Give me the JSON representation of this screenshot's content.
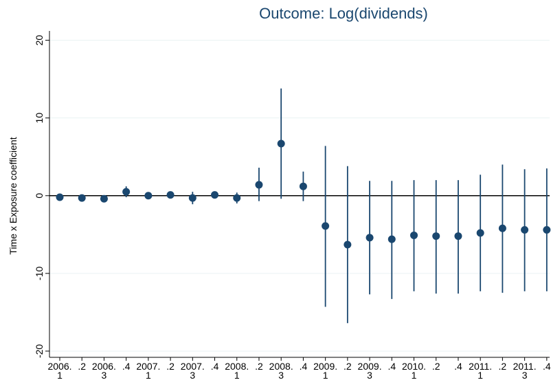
{
  "chart_data": {
    "type": "coefplot",
    "title": "Outcome: Log(dividends)",
    "y_label": "Time x Exposure coefficient",
    "categories": [
      [
        "2006.",
        "1"
      ],
      [
        ".2"
      ],
      [
        "2006.",
        "3"
      ],
      [
        ".4"
      ],
      [
        "2007.",
        "1"
      ],
      [
        ".2"
      ],
      [
        "2007.",
        "3"
      ],
      [
        ".4"
      ],
      [
        "2008.",
        "1"
      ],
      [
        ".2"
      ],
      [
        "2008.",
        "3"
      ],
      [
        ".4"
      ],
      [
        "2009.",
        "1"
      ],
      [
        ".2"
      ],
      [
        "2009.",
        "3"
      ],
      [
        ".4"
      ],
      [
        "2010.",
        "1"
      ],
      [
        ".2"
      ],
      [
        ".4"
      ],
      [
        "2011.",
        "1"
      ],
      [
        ".2"
      ],
      [
        "2011.",
        "3"
      ],
      [
        ".4"
      ]
    ],
    "values": [
      -0.2,
      -0.3,
      -0.4,
      0.5,
      0.0,
      0.1,
      -0.3,
      0.1,
      -0.3,
      1.4,
      6.7,
      1.2,
      -3.9,
      -6.3,
      -5.4,
      -5.6,
      -5.1,
      -5.2,
      -5.2,
      -4.8,
      -4.2,
      -4.4,
      -4.4
    ],
    "lower": [
      -0.5,
      -0.5,
      -0.7,
      -0.2,
      -0.2,
      -0.1,
      -1.1,
      -0.2,
      -1.0,
      -0.7,
      -0.4,
      -0.7,
      -14.3,
      -16.4,
      -12.7,
      -13.3,
      -12.3,
      -12.6,
      -12.6,
      -12.3,
      -12.5,
      -12.3,
      -12.3
    ],
    "upper": [
      0.1,
      -0.1,
      -0.1,
      1.2,
      0.2,
      0.3,
      0.5,
      0.4,
      0.4,
      3.6,
      13.8,
      3.1,
      6.4,
      3.8,
      1.9,
      1.9,
      2.0,
      2.0,
      2.0,
      2.7,
      4.0,
      3.4,
      3.5
    ],
    "color": "#1a476f",
    "ylim": [
      -20.8,
      21.2
    ],
    "yticks": [
      -20,
      -10,
      0,
      10,
      20
    ],
    "grid": true,
    "zero_line": true
  }
}
